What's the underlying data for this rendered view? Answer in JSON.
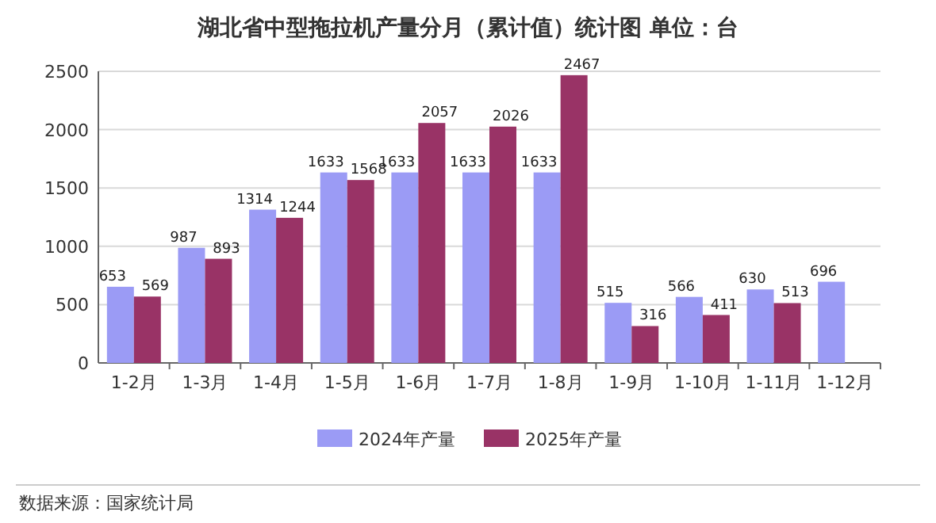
{
  "chart_data": {
    "type": "bar",
    "title": "湖北省中型拖拉机产量分月（累计值）统计图 单位：台",
    "categories": [
      "1-2月",
      "1-3月",
      "1-4月",
      "1-5月",
      "1-6月",
      "1-7月",
      "1-8月",
      "1-9月",
      "1-10月",
      "1-11月",
      "1-12月"
    ],
    "series": [
      {
        "name": "2024年产量",
        "color": "#9b9bf5",
        "values": [
          653,
          987,
          1314,
          1633,
          1633,
          1633,
          1633,
          515,
          566,
          630,
          696
        ]
      },
      {
        "name": "2025年产量",
        "color": "#993366",
        "values": [
          569,
          893,
          1244,
          1568,
          2057,
          2026,
          2467,
          316,
          411,
          513,
          null
        ]
      }
    ],
    "ylim": [
      0,
      2500
    ],
    "yticks": [
      0,
      500,
      1000,
      1500,
      2000,
      2500
    ],
    "grid": "y",
    "legend": "bottom",
    "data_labels": true,
    "annotations": [
      "数据来源：国家统计局"
    ]
  }
}
